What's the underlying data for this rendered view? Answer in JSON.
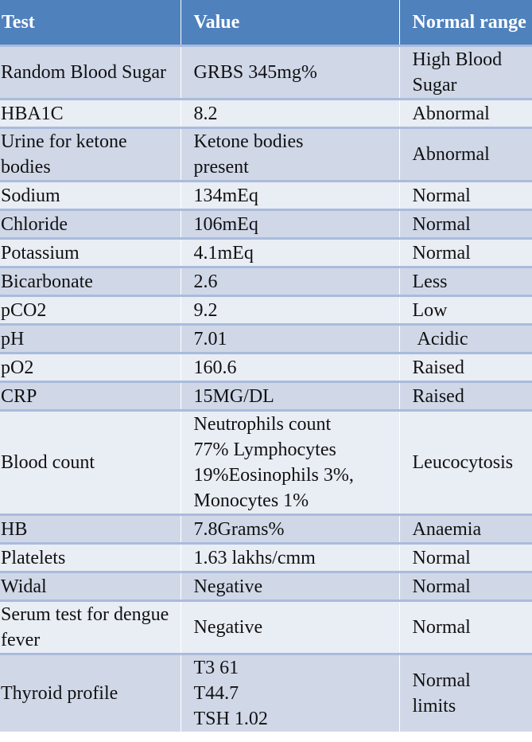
{
  "table": {
    "headers": [
      "Test",
      "Value",
      "Normal range"
    ],
    "rows": [
      {
        "test": "Random Blood Sugar",
        "value": "GRBS 345mg%",
        "range": "High Blood Sugar"
      },
      {
        "test": "HBA1C",
        "value": "8.2",
        "range": "Abnormal"
      },
      {
        "test": "Urine for ketone bodies",
        "value": "Ketone bodies present",
        "range": "Abnormal"
      },
      {
        "test": "Sodium",
        "value": "134mEq",
        "range": "Normal"
      },
      {
        "test": "Chloride",
        "value": "106mEq",
        "range": "Normal"
      },
      {
        "test": "Potassium",
        "value": "4.1mEq",
        "range": "Normal"
      },
      {
        "test": "Bicarbonate",
        "value": "2.6",
        "range": "Less"
      },
      {
        "test": "pCO2",
        "value": "9.2",
        "range": "Low"
      },
      {
        "test": "pH",
        "value": "7.01",
        "range": "Acidic"
      },
      {
        "test": "pO2",
        "value": "160.6",
        "range": "Raised"
      },
      {
        "test": "CRP",
        "value": "15MG/DL",
        "range": "Raised"
      },
      {
        "test": "Blood count",
        "value": [
          "Neutrophils count",
          "77% Lymphocytes",
          "19%Eosinophils 3%,",
          "Monocytes 1%"
        ],
        "range": "Leucocytosis"
      },
      {
        "test": "HB",
        "value": "7.8Grams%",
        "range": "Anaemia"
      },
      {
        "test": "Platelets",
        "value": "1.63 lakhs/cmm",
        "range": "Normal"
      },
      {
        "test": "Widal",
        "value": "Negative",
        "range": "Normal"
      },
      {
        "test": "Serum test for dengue fever",
        "value": "Negative",
        "range": "Normal"
      },
      {
        "test": "Thyroid profile",
        "value": [
          "T3 61",
          "T44.7",
          "TSH 1.02"
        ],
        "range": "Normal limits"
      }
    ]
  }
}
